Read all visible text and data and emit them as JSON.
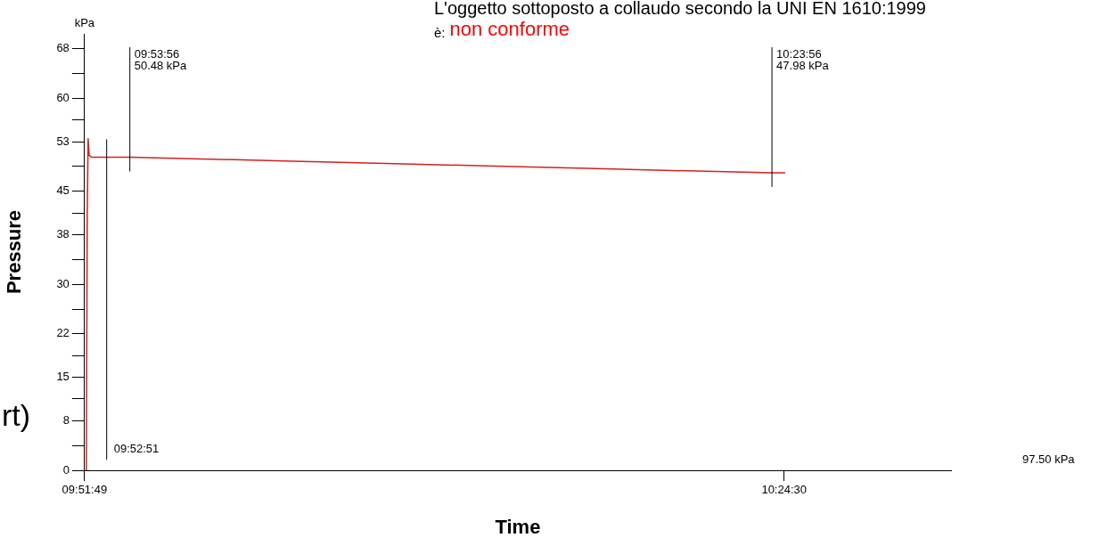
{
  "chart_data": {
    "type": "line",
    "title": "L'oggetto sottoposto a collaudo secondo la UNI EN 1610:1999",
    "subtitle": "è:",
    "xlabel": "Time",
    "ylabel": "Pressure",
    "annotations": [
      "non conforme",
      "kPa",
      "97.50 kPa",
      "rt)",
      "09:52:51",
      "09:53:56\n50.48 kPa",
      "10:23:56\n47.98 kPa"
    ],
    "x": [
      9.8643,
      9.865,
      9.8657,
      9.8664,
      9.8672,
      9.8693,
      9.8989,
      9.9407,
      10.0193,
      10.0978,
      10.1764,
      10.2549,
      10.3335,
      10.3989,
      10.4092
    ],
    "series": [
      {
        "color": "#d42020",
        "values": [
          0,
          0,
          41,
          53.5,
          50.8,
          50.5,
          50.5,
          50.3,
          49.9,
          49.5,
          49.1,
          48.7,
          48.3,
          48.0,
          48.0
        ]
      }
    ],
    "xlim": [
      9.86361,
      10.53833
    ],
    "xticks": [
      {
        "value": 9.863611,
        "label": "09:51:49"
      },
      {
        "value": 10.408333,
        "label": "10:24:30"
      }
    ],
    "ylim": [
      0,
      70.4
    ],
    "yticks": [
      0,
      {
        "value": 4,
        "label": null
      },
      8,
      {
        "value": 11.5,
        "label": null
      },
      15,
      {
        "value": 18.5,
        "label": null
      },
      22,
      {
        "value": 26,
        "label": null
      },
      30,
      {
        "value": 34,
        "label": null
      },
      38,
      {
        "value": 41.5,
        "label": null
      },
      45,
      {
        "value": 49,
        "label": null
      },
      53,
      {
        "value": 56.5,
        "label": null
      },
      60,
      {
        "value": 64,
        "label": null
      },
      68
    ],
    "ref_lines": [
      {
        "axis": "x",
        "value": 9.880833,
        "color": "#000000"
      },
      {
        "axis": "x",
        "value": 9.898889,
        "color": "#000000"
      },
      {
        "axis": "x",
        "value": 10.398889,
        "color": "#000000"
      }
    ],
    "grid": false,
    "legend": false,
    "marker": "none",
    "line_style": "solid"
  }
}
